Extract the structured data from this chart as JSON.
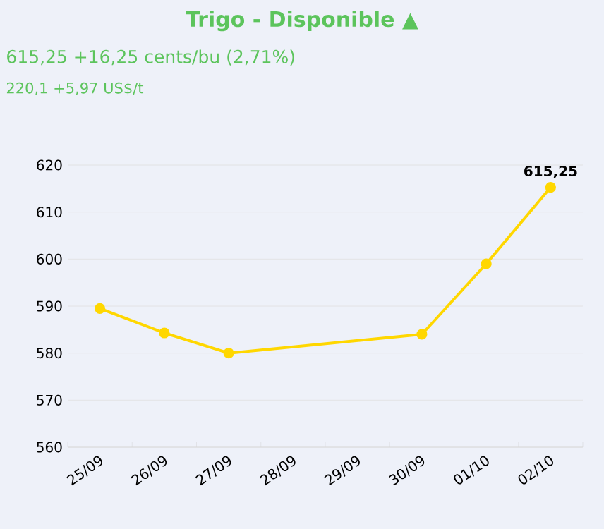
{
  "chart_data": {
    "type": "line",
    "title": "Trigo - Disponible ▲",
    "subtitle": "615,25 +16,25 cents/bu (2,71%)",
    "annotations": [
      "220,1 +5,97 US$/t"
    ],
    "categories": [
      "25/09",
      "26/09",
      "27/09",
      "28/09",
      "29/09",
      "30/09",
      "01/10",
      "02/10"
    ],
    "series": [
      {
        "color": "#ffd700",
        "values": [
          589.5,
          584.3,
          580,
          null,
          null,
          584,
          599,
          615.25
        ],
        "value_labels": [
          null,
          null,
          null,
          null,
          null,
          null,
          null,
          "615,25"
        ]
      }
    ],
    "ylim": [
      560,
      620
    ],
    "yticks": [
      560,
      570,
      580,
      590,
      600,
      610,
      620
    ],
    "grid": "y",
    "marker": "circle"
  }
}
